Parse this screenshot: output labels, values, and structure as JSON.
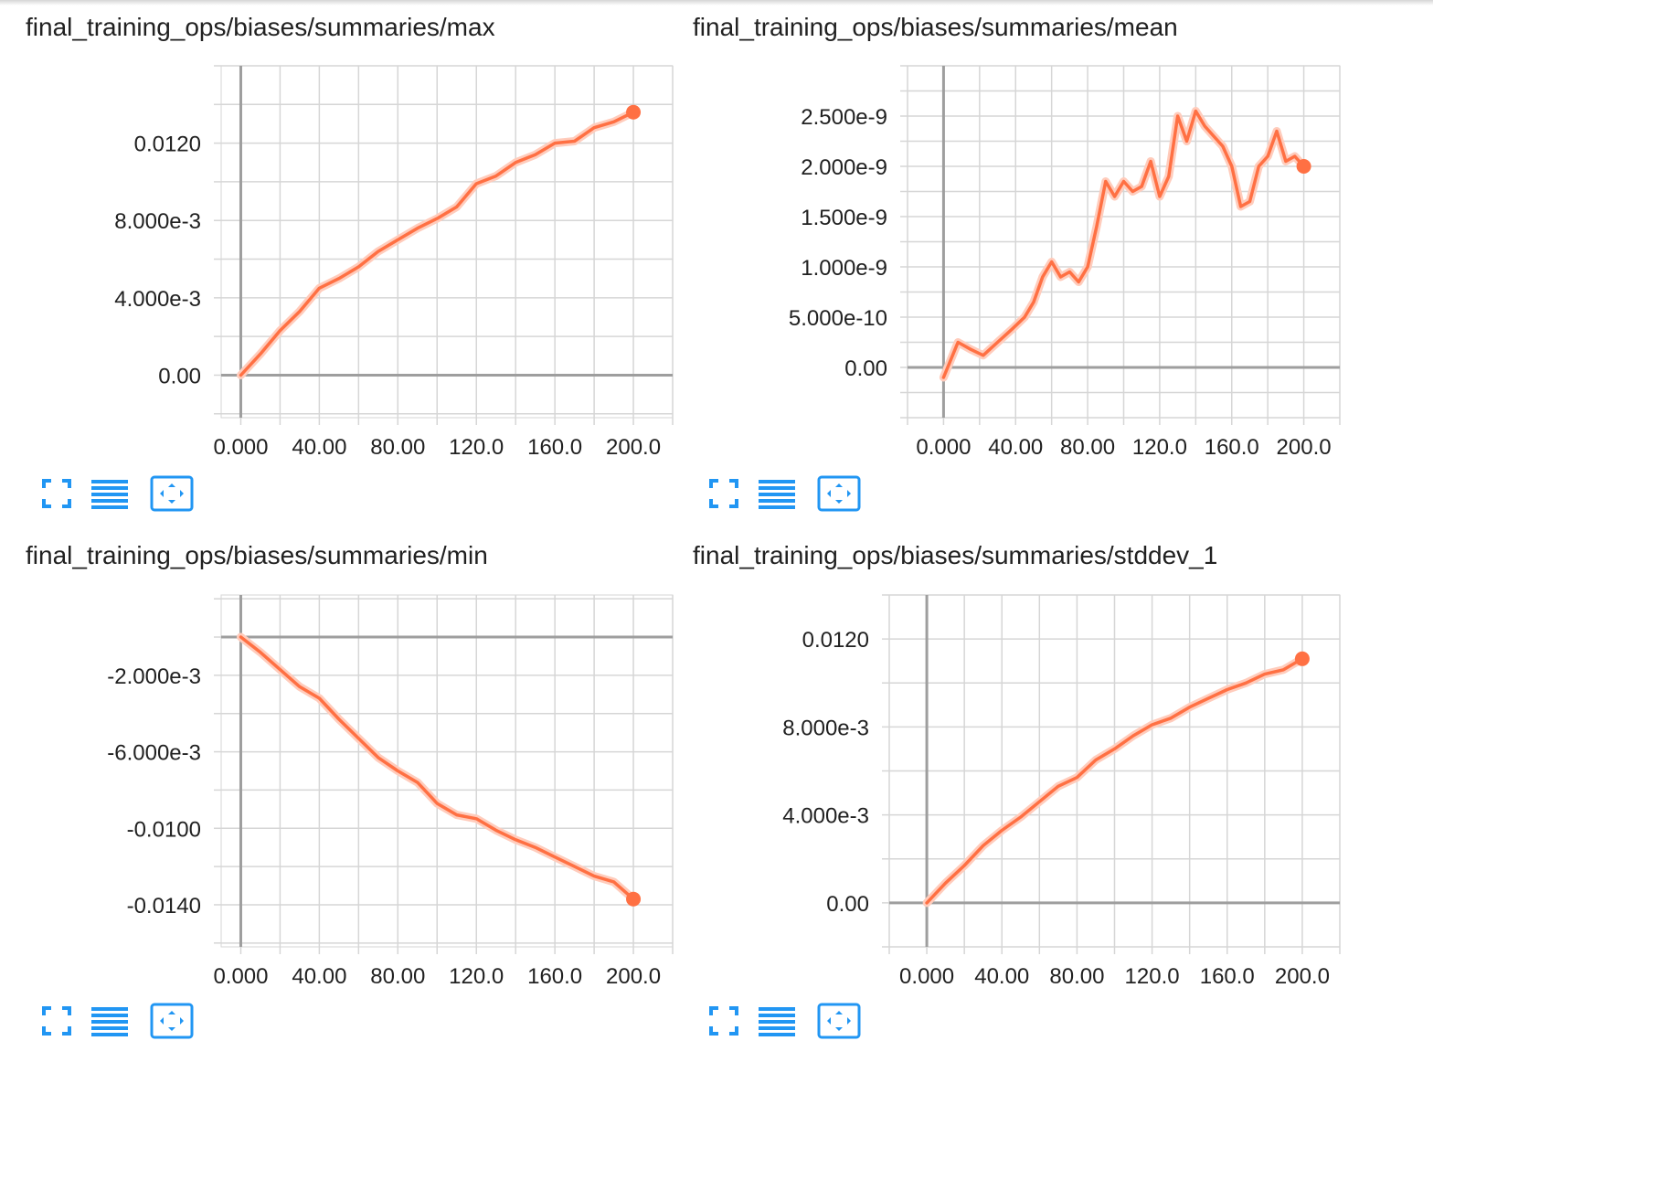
{
  "colors": {
    "series": "#ff7043",
    "series_light": "#ffccbc",
    "grid": "#d6d6d6",
    "axis": "#9e9e9e",
    "icon": "#2196f3"
  },
  "toolbar": {
    "icons": [
      "fit-to-data-icon",
      "data-table-icon",
      "toggle-y-axis-log-icon"
    ]
  },
  "chart_data": [
    {
      "title": "final_training_ops/biases/summaries/max",
      "type": "line",
      "xlim": [
        -10,
        220
      ],
      "ylim": [
        -0.0022,
        0.016
      ],
      "x_ticks": [
        0,
        40,
        80,
        120,
        160,
        200
      ],
      "x_tick_labels": [
        "0.000",
        "40.00",
        "80.00",
        "120.0",
        "160.0",
        "200.0"
      ],
      "y_ticks": [
        0,
        0.004,
        0.008,
        0.012
      ],
      "y_tick_labels": [
        "0.00",
        "4.000e-3",
        "8.000e-3",
        "0.0120"
      ],
      "series": [
        {
          "x": [
            0,
            10,
            20,
            30,
            40,
            50,
            60,
            70,
            80,
            90,
            100,
            110,
            120,
            130,
            140,
            150,
            160,
            170,
            180,
            190,
            200
          ],
          "y": [
            0,
            0.0011,
            0.0023,
            0.0033,
            0.0045,
            0.005,
            0.0056,
            0.0064,
            0.007,
            0.0076,
            0.0081,
            0.0087,
            0.0099,
            0.0103,
            0.011,
            0.0114,
            0.012,
            0.0121,
            0.0128,
            0.0131,
            0.0136
          ]
        }
      ]
    },
    {
      "title": "final_training_ops/biases/summaries/mean",
      "type": "line",
      "xlim": [
        -20,
        220
      ],
      "ylim": [
        -5e-10,
        3e-09
      ],
      "x_ticks": [
        0,
        40,
        80,
        120,
        160,
        200
      ],
      "x_tick_labels": [
        "0.000",
        "40.00",
        "80.00",
        "120.0",
        "160.0",
        "200.0"
      ],
      "y_ticks": [
        0,
        5e-10,
        1e-09,
        1.5e-09,
        2e-09,
        2.5e-09
      ],
      "y_tick_labels": [
        "0.00",
        "5.000e-10",
        "1.000e-9",
        "1.500e-9",
        "2.000e-9",
        "2.500e-9"
      ],
      "series": [
        {
          "x": [
            0,
            8,
            15,
            22,
            30,
            38,
            45,
            50,
            55,
            60,
            65,
            70,
            75,
            80,
            85,
            90,
            95,
            100,
            105,
            110,
            115,
            120,
            125,
            130,
            135,
            140,
            145,
            150,
            155,
            160,
            165,
            170,
            175,
            180,
            185,
            190,
            195,
            200
          ],
          "y": [
            -1e-10,
            2.5e-10,
            1.8e-10,
            1.2e-10,
            2.5e-10,
            3.8e-10,
            5e-10,
            6.5e-10,
            9e-10,
            1.05e-09,
            9e-10,
            9.5e-10,
            8.5e-10,
            1e-09,
            1.4e-09,
            1.85e-09,
            1.7e-09,
            1.85e-09,
            1.75e-09,
            1.8e-09,
            2.05e-09,
            1.7e-09,
            1.9e-09,
            2.5e-09,
            2.25e-09,
            2.55e-09,
            2.4e-09,
            2.3e-09,
            2.2e-09,
            2e-09,
            1.6e-09,
            1.65e-09,
            2e-09,
            2.1e-09,
            2.35e-09,
            2.05e-09,
            2.1e-09,
            2e-09
          ]
        }
      ]
    },
    {
      "title": "final_training_ops/biases/summaries/min",
      "type": "line",
      "xlim": [
        -10,
        220
      ],
      "ylim": [
        -0.0162,
        0.0022
      ],
      "x_ticks": [
        0,
        40,
        80,
        120,
        160,
        200
      ],
      "x_tick_labels": [
        "0.000",
        "40.00",
        "80.00",
        "120.0",
        "160.0",
        "200.0"
      ],
      "y_ticks": [
        -0.002,
        -0.006,
        -0.01,
        -0.014
      ],
      "y_tick_labels": [
        "-2.000e-3",
        "-6.000e-3",
        "-0.0100",
        "-0.0140"
      ],
      "series": [
        {
          "x": [
            0,
            10,
            20,
            30,
            40,
            50,
            60,
            70,
            80,
            90,
            100,
            110,
            120,
            130,
            140,
            150,
            160,
            170,
            180,
            190,
            200
          ],
          "y": [
            0,
            -0.0008,
            -0.0017,
            -0.0026,
            -0.0032,
            -0.0043,
            -0.0053,
            -0.0063,
            -0.007,
            -0.0076,
            -0.0087,
            -0.0093,
            -0.0095,
            -0.0101,
            -0.0106,
            -0.011,
            -0.0115,
            -0.012,
            -0.0125,
            -0.0128,
            -0.0137
          ]
        }
      ]
    },
    {
      "title": "final_training_ops/biases/summaries/stddev_1",
      "type": "line",
      "xlim": [
        -20,
        220
      ],
      "ylim": [
        -0.002,
        0.014
      ],
      "x_ticks": [
        0,
        40,
        80,
        120,
        160,
        200
      ],
      "x_tick_labels": [
        "0.000",
        "40.00",
        "80.00",
        "120.0",
        "160.0",
        "200.0"
      ],
      "y_ticks": [
        0,
        0.004,
        0.008,
        0.012
      ],
      "y_tick_labels": [
        "0.00",
        "4.000e-3",
        "8.000e-3",
        "0.0120"
      ],
      "series": [
        {
          "x": [
            0,
            10,
            20,
            30,
            40,
            50,
            60,
            70,
            80,
            90,
            100,
            110,
            120,
            130,
            140,
            150,
            160,
            170,
            180,
            190,
            200
          ],
          "y": [
            0,
            0.0009,
            0.0017,
            0.0026,
            0.0033,
            0.0039,
            0.0046,
            0.0053,
            0.0057,
            0.0065,
            0.007,
            0.0076,
            0.0081,
            0.0084,
            0.0089,
            0.0093,
            0.0097,
            0.01,
            0.0104,
            0.0106,
            0.0111
          ]
        }
      ]
    }
  ]
}
